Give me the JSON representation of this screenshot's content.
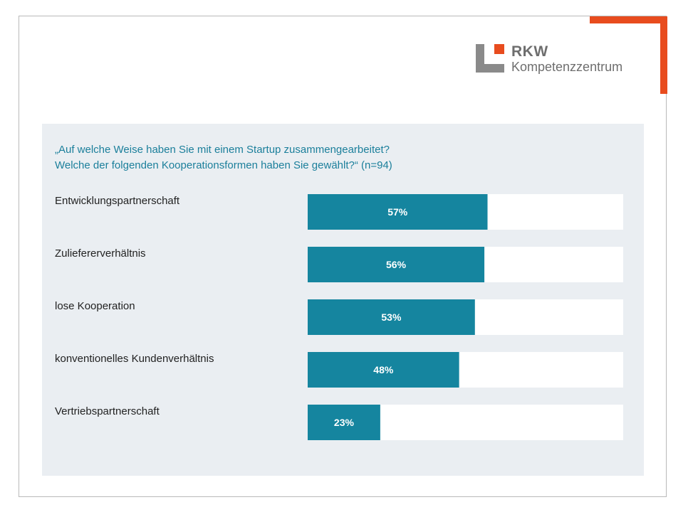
{
  "brand": {
    "name": "RKW",
    "subtitle": "Kompetenzzentrum",
    "colors": {
      "accent": "#e84c1e",
      "logo_gray": "#8a8a8a",
      "logo_orange": "#e84c1e",
      "text_gray": "#6e6e6e"
    }
  },
  "question": {
    "line1": "„Auf welche Weise haben Sie mit einem Startup zusammengearbeitet?",
    "line2": "Welche der folgenden Kooperationsformen haben Sie gewählt?“ (n=94)",
    "color": "#1b7f9b"
  },
  "chart_data": {
    "type": "bar",
    "orientation": "horizontal",
    "categories": [
      "Entwicklungspartnerschaft",
      "Zuliefererverhältnis",
      "lose Kooperation",
      "konventionelles Kundenverhältnis",
      "Vertriebspartnerschaft"
    ],
    "values": [
      57,
      56,
      53,
      48,
      23
    ],
    "value_labels": [
      "57%",
      "56%",
      "53%",
      "48%",
      "23%"
    ],
    "xlim": [
      0,
      100
    ],
    "unit": "%",
    "grid": false,
    "legend": "none",
    "colors": {
      "bar": "#15859f",
      "track": "#ffffff",
      "label": "#222222",
      "value": "#ffffff"
    }
  }
}
